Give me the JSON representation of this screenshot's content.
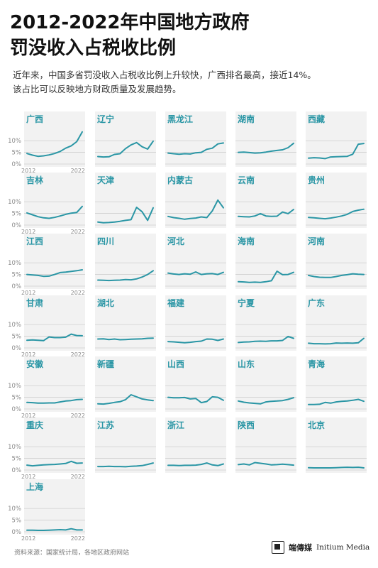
{
  "header": {
    "title_line1": "2012-2022年中国地方政府",
    "title_line2": "罚没收入占税收比例",
    "subtitle_line1": "近年来，中国多省罚没收入占税收比例上升较快，广西排名最高，接近14%。",
    "subtitle_line2": "该占比可以反映地方财政质量及发展趋势。"
  },
  "colors": {
    "line": "#2a96a5",
    "label": "#2a96a5",
    "panel_bg": "#f2f2f2",
    "grid": "#cfcfcf",
    "axis_text": "#8a8a8a"
  },
  "footer": {
    "source": "资料来源：国家统计局，各地区政府网站",
    "brand_cn": "端傳媒",
    "brand_en": "Initium Media"
  },
  "chart_data": {
    "type": "line",
    "x": [
      2012,
      2013,
      2014,
      2015,
      2016,
      2017,
      2018,
      2019,
      2020,
      2021,
      2022
    ],
    "ylim": [
      0,
      14
    ],
    "yticks": [
      "10%",
      "5%",
      "0%"
    ],
    "xticks": [
      "2012",
      "2022"
    ],
    "panels": [
      {
        "name": "广西",
        "values": [
          4.5,
          3.8,
          3.3,
          3.5,
          3.9,
          4.5,
          5.4,
          6.8,
          7.8,
          9.6,
          13.8
        ]
      },
      {
        "name": "辽宁",
        "values": [
          3.2,
          3.0,
          3.1,
          4.1,
          4.4,
          6.6,
          8.2,
          9.2,
          7.4,
          6.4,
          9.8
        ]
      },
      {
        "name": "黑龙江",
        "values": [
          4.7,
          4.4,
          4.2,
          4.4,
          4.3,
          4.8,
          5.0,
          6.3,
          6.8,
          8.6,
          9.0
        ]
      },
      {
        "name": "湖南",
        "values": [
          5.0,
          5.1,
          4.9,
          4.7,
          4.8,
          5.1,
          5.5,
          5.8,
          6.1,
          7.0,
          8.9
        ]
      },
      {
        "name": "西藏",
        "values": [
          2.5,
          2.7,
          2.6,
          2.3,
          3.0,
          3.1,
          3.2,
          3.3,
          4.2,
          8.5,
          8.8
        ]
      },
      {
        "name": "吉林",
        "values": [
          5.2,
          4.4,
          3.6,
          3.1,
          2.9,
          3.3,
          3.9,
          4.6,
          5.1,
          5.4,
          8.0
        ]
      },
      {
        "name": "天津",
        "values": [
          1.3,
          1.0,
          1.1,
          1.3,
          1.6,
          2.0,
          2.3,
          7.6,
          5.7,
          2.0,
          7.4
        ]
      },
      {
        "name": "内蒙古",
        "values": [
          3.7,
          3.2,
          2.9,
          2.5,
          2.8,
          3.0,
          3.5,
          3.2,
          6.1,
          10.7,
          7.4
        ]
      },
      {
        "name": "云南",
        "values": [
          3.7,
          3.6,
          3.5,
          3.9,
          4.9,
          3.9,
          3.7,
          3.8,
          5.6,
          4.9,
          6.7
        ]
      },
      {
        "name": "贵州",
        "values": [
          3.3,
          3.1,
          2.9,
          2.7,
          3.0,
          3.4,
          3.9,
          4.6,
          5.8,
          6.4,
          6.8
        ]
      },
      {
        "name": "江西",
        "values": [
          5.0,
          4.8,
          4.6,
          4.2,
          4.3,
          5.0,
          5.8,
          6.0,
          6.3,
          6.6,
          7.0
        ]
      },
      {
        "name": "四川",
        "values": [
          2.6,
          2.5,
          2.4,
          2.5,
          2.6,
          2.8,
          2.7,
          3.1,
          3.9,
          5.0,
          6.6
        ]
      },
      {
        "name": "河北",
        "values": [
          5.6,
          5.2,
          5.0,
          5.3,
          5.1,
          6.1,
          5.0,
          5.3,
          5.4,
          5.0,
          5.9
        ]
      },
      {
        "name": "海南",
        "values": [
          1.9,
          1.8,
          1.6,
          1.7,
          1.6,
          1.9,
          2.3,
          6.4,
          4.9,
          5.0,
          5.9
        ]
      },
      {
        "name": "河南",
        "values": [
          4.6,
          4.1,
          3.8,
          3.7,
          3.7,
          4.1,
          4.6,
          4.9,
          5.3,
          5.1,
          5.0
        ]
      },
      {
        "name": "甘肃",
        "values": [
          3.3,
          3.4,
          3.3,
          3.1,
          4.7,
          4.4,
          4.4,
          4.6,
          5.9,
          5.3,
          5.2
        ]
      },
      {
        "name": "湖北",
        "values": [
          3.8,
          3.9,
          3.6,
          3.8,
          3.5,
          3.6,
          3.7,
          3.8,
          3.9,
          4.1,
          4.2
        ]
      },
      {
        "name": "福建",
        "values": [
          2.7,
          2.6,
          2.4,
          2.2,
          2.4,
          2.7,
          2.9,
          3.8,
          3.7,
          3.2,
          3.8
        ]
      },
      {
        "name": "宁夏",
        "values": [
          2.3,
          2.5,
          2.6,
          2.8,
          2.9,
          2.8,
          3.0,
          3.0,
          3.2,
          4.9,
          4.1
        ]
      },
      {
        "name": "广东",
        "values": [
          2.0,
          1.8,
          1.8,
          1.7,
          1.8,
          2.1,
          2.0,
          2.1,
          2.0,
          2.2,
          4.1
        ]
      },
      {
        "name": "安徽",
        "values": [
          2.8,
          2.7,
          2.5,
          2.5,
          2.6,
          2.6,
          3.0,
          3.4,
          3.6,
          4.0,
          4.1
        ]
      },
      {
        "name": "新疆",
        "values": [
          2.2,
          2.1,
          2.4,
          2.8,
          3.1,
          4.0,
          6.1,
          5.2,
          4.3,
          3.9,
          3.6
        ]
      },
      {
        "name": "山西",
        "values": [
          5.0,
          4.8,
          4.8,
          4.9,
          4.3,
          4.5,
          2.7,
          3.2,
          5.2,
          5.0,
          3.7
        ]
      },
      {
        "name": "山东",
        "values": [
          3.4,
          2.9,
          2.6,
          2.4,
          2.2,
          3.0,
          3.3,
          3.4,
          3.6,
          4.1,
          4.8
        ]
      },
      {
        "name": "青海",
        "values": [
          1.9,
          1.9,
          2.0,
          2.8,
          2.5,
          3.0,
          3.3,
          3.4,
          3.7,
          4.1,
          3.3
        ]
      },
      {
        "name": "重庆",
        "values": [
          2.1,
          1.8,
          2.0,
          2.2,
          2.3,
          2.4,
          2.6,
          2.8,
          3.7,
          2.9,
          3.0
        ]
      },
      {
        "name": "江苏",
        "values": [
          1.5,
          1.5,
          1.6,
          1.5,
          1.5,
          1.4,
          1.6,
          1.7,
          1.9,
          2.4,
          3.0
        ]
      },
      {
        "name": "浙江",
        "values": [
          2.0,
          2.0,
          1.9,
          2.0,
          2.0,
          2.1,
          2.4,
          3.0,
          2.2,
          1.9,
          2.6
        ]
      },
      {
        "name": "陕西",
        "values": [
          2.3,
          2.6,
          2.2,
          3.2,
          2.9,
          2.6,
          2.2,
          2.3,
          2.5,
          2.3,
          2.1
        ]
      },
      {
        "name": "北京",
        "values": [
          1.0,
          0.9,
          0.9,
          0.9,
          0.9,
          1.0,
          1.1,
          1.2,
          1.1,
          1.2,
          0.9
        ]
      },
      {
        "name": "上海",
        "values": [
          0.7,
          0.7,
          0.6,
          0.6,
          0.7,
          0.8,
          0.9,
          0.8,
          1.3,
          0.8,
          0.8
        ]
      }
    ]
  }
}
